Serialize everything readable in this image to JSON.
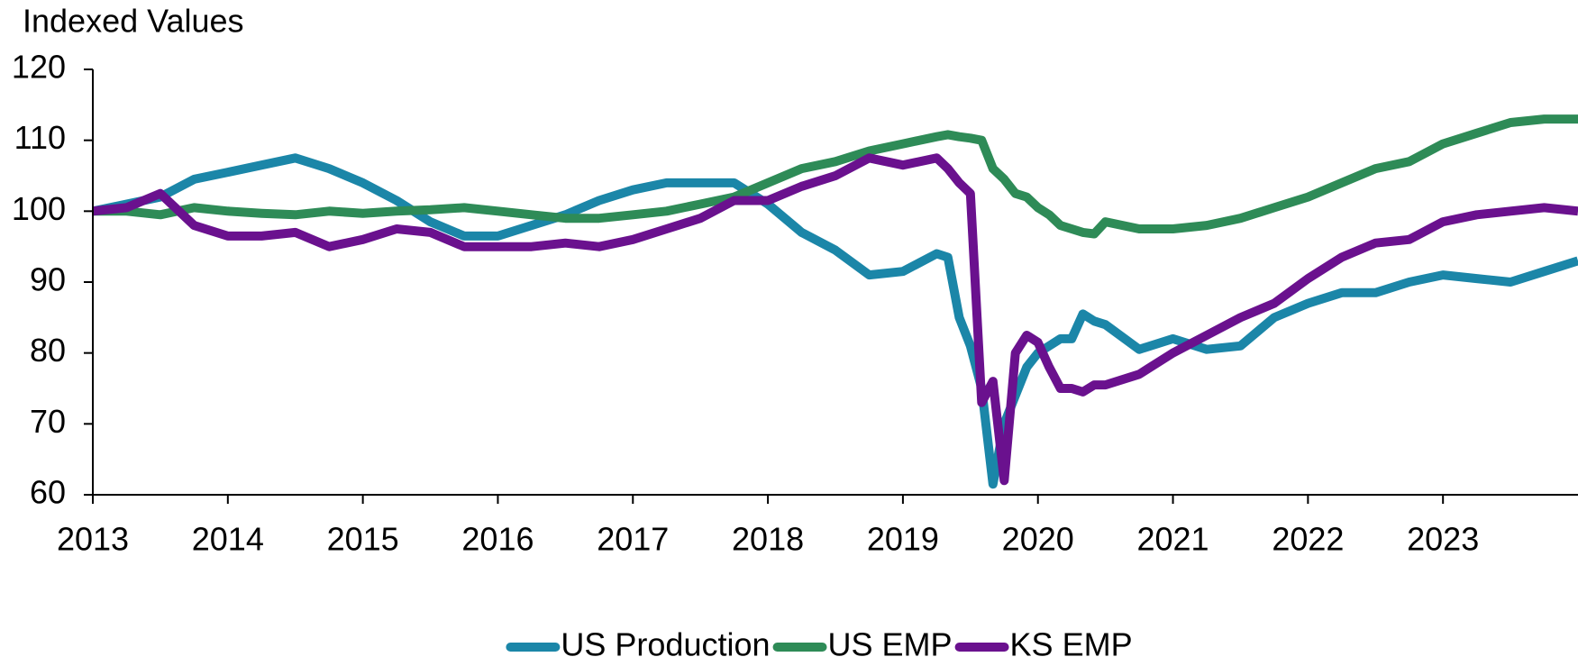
{
  "chart_data": {
    "type": "line",
    "y_axis_label": "Indexed Values",
    "x": [
      2013,
      2013.25,
      2013.5,
      2013.75,
      2014,
      2014.25,
      2014.5,
      2014.75,
      2015,
      2015.25,
      2015.5,
      2015.75,
      2016,
      2016.25,
      2016.5,
      2016.75,
      2017,
      2017.25,
      2017.5,
      2017.75,
      2018,
      2018.25,
      2018.5,
      2018.75,
      2019,
      2019.25,
      2019.333,
      2019.417,
      2019.5,
      2019.583,
      2019.667,
      2019.75,
      2019.833,
      2019.917,
      2020,
      2020.083,
      2020.167,
      2020.25,
      2020.333,
      2020.417,
      2020.5,
      2020.75,
      2021,
      2021.25,
      2021.5,
      2021.75,
      2022,
      2022.25,
      2022.5,
      2022.75,
      2023,
      2023.25,
      2023.5,
      2023.75,
      2024
    ],
    "series": [
      {
        "name": "US Production",
        "color": "#1b86a8",
        "values": [
          100,
          101,
          102,
          104.5,
          105.5,
          106.5,
          107.5,
          106,
          104,
          101.5,
          98.5,
          96.5,
          96.5,
          98,
          99.5,
          101.5,
          103,
          104,
          104,
          104,
          101,
          97,
          94.5,
          91,
          91.5,
          94,
          93.5,
          85,
          81,
          75,
          61.5,
          70,
          74,
          78,
          80,
          81,
          82,
          82,
          85.5,
          84.5,
          84,
          80.5,
          82,
          80.5,
          81,
          85,
          87,
          88.5,
          88.5,
          90,
          91,
          90.5,
          90,
          91.5,
          93
        ]
      },
      {
        "name": "US EMP",
        "color": "#2e8b57",
        "values": [
          100,
          100,
          99.5,
          100.5,
          100,
          99.7,
          99.5,
          100,
          99.7,
          100,
          100.2,
          100.5,
          100,
          99.5,
          99,
          99,
          99.5,
          100,
          101,
          102,
          104,
          106,
          107,
          108.5,
          109.5,
          110.5,
          110.8,
          110.5,
          110.3,
          110,
          106,
          104.5,
          102.5,
          102,
          100.5,
          99.5,
          98,
          97.5,
          97,
          96.8,
          98.5,
          97.5,
          97.5,
          98,
          99,
          100.5,
          102,
          104,
          106,
          107,
          109.5,
          111,
          112.5,
          113,
          113
        ]
      },
      {
        "name": "KS EMP",
        "color": "#6a118e",
        "values": [
          100,
          100.5,
          102.5,
          98,
          96.5,
          96.5,
          97,
          95,
          96,
          97.5,
          97,
          95,
          95,
          95,
          95.5,
          95,
          96,
          97.5,
          99,
          101.5,
          101.5,
          103.5,
          105,
          107.5,
          106.5,
          107.5,
          106,
          104,
          102.5,
          73,
          76,
          62,
          80,
          82.5,
          81.5,
          78,
          75,
          75,
          74.5,
          75.5,
          75.5,
          77,
          80,
          82.5,
          85,
          87,
          90.5,
          93.5,
          95.5,
          96,
          98.5,
          99.5,
          100,
          100.5,
          100
        ]
      }
    ],
    "xlim": [
      2013,
      2024
    ],
    "xticks": [
      2013,
      2014,
      2015,
      2016,
      2017,
      2018,
      2019,
      2020,
      2021,
      2022,
      2023
    ],
    "ylim": [
      60,
      120
    ],
    "yticks": [
      60,
      70,
      80,
      90,
      100,
      110,
      120
    ],
    "grid": false,
    "legend": "bottom"
  }
}
